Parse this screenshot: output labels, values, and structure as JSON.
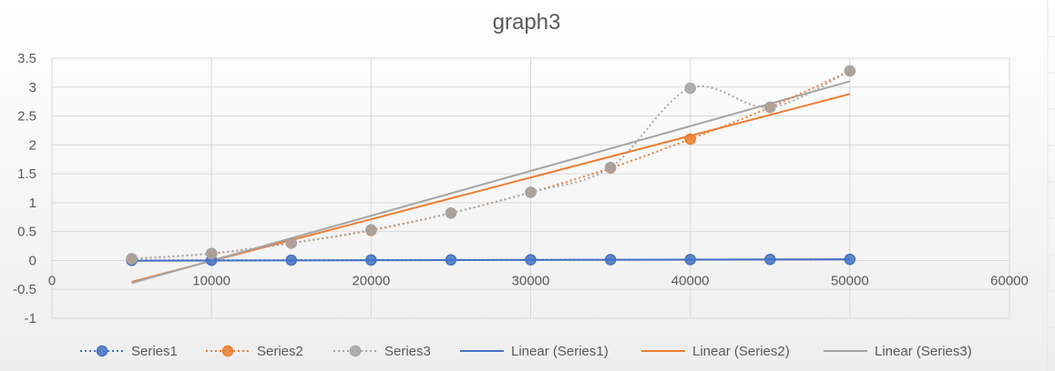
{
  "chart_data": {
    "type": "line",
    "title": "graph3",
    "xlabel": "",
    "ylabel": "",
    "x_ticks": [
      0,
      10000,
      20000,
      30000,
      40000,
      50000,
      60000
    ],
    "y_ticks": [
      3.5,
      3,
      2.5,
      2,
      1.5,
      1,
      0.5,
      0,
      -0.5,
      -1
    ],
    "xlim": [
      0,
      60000
    ],
    "ylim": [
      -1,
      3.5
    ],
    "grid": true,
    "legend_position": "bottom",
    "x": [
      5000,
      10000,
      15000,
      20000,
      25000,
      30000,
      35000,
      40000,
      45000,
      50000
    ],
    "series": [
      {
        "name": "Series1",
        "color": "#4472c4",
        "style": "dotted-markers",
        "values": [
          0.002,
          0.004,
          0.006,
          0.008,
          0.01,
          0.012,
          0.014,
          0.016,
          0.018,
          0.02
        ]
      },
      {
        "name": "Series2",
        "color": "#ed7d31",
        "style": "dotted-markers",
        "values": [
          0.03,
          0.12,
          0.3,
          0.52,
          0.82,
          1.18,
          1.6,
          2.1,
          2.65,
          3.28
        ]
      },
      {
        "name": "Series3",
        "color": "#a5a5a5",
        "style": "dotted-markers",
        "values": [
          0.03,
          0.12,
          0.3,
          0.53,
          0.82,
          1.18,
          1.61,
          2.98,
          2.65,
          3.28
        ]
      }
    ],
    "trendlines": [
      {
        "name": "Linear (Series1)",
        "color": "#4472c4",
        "from": [
          5000,
          -0.005
        ],
        "to": [
          50000,
          0.02
        ]
      },
      {
        "name": "Linear (Series2)",
        "color": "#ed7d31",
        "from": [
          5000,
          -0.37
        ],
        "to": [
          50000,
          2.88
        ]
      },
      {
        "name": "Linear (Series3)",
        "color": "#a5a5a5",
        "from": [
          5000,
          -0.39
        ],
        "to": [
          50000,
          3.1
        ]
      }
    ],
    "legend": [
      {
        "label": "Series1",
        "kind": "marker",
        "color": "#4472c4"
      },
      {
        "label": "Series2",
        "kind": "marker",
        "color": "#ed7d31"
      },
      {
        "label": "Series3",
        "kind": "marker",
        "color": "#a5a5a5"
      },
      {
        "label": "Linear (Series1)",
        "kind": "line",
        "color": "#4472c4"
      },
      {
        "label": "Linear (Series2)",
        "kind": "line",
        "color": "#ed7d31"
      },
      {
        "label": "Linear (Series3)",
        "kind": "line",
        "color": "#a5a5a5"
      }
    ]
  }
}
